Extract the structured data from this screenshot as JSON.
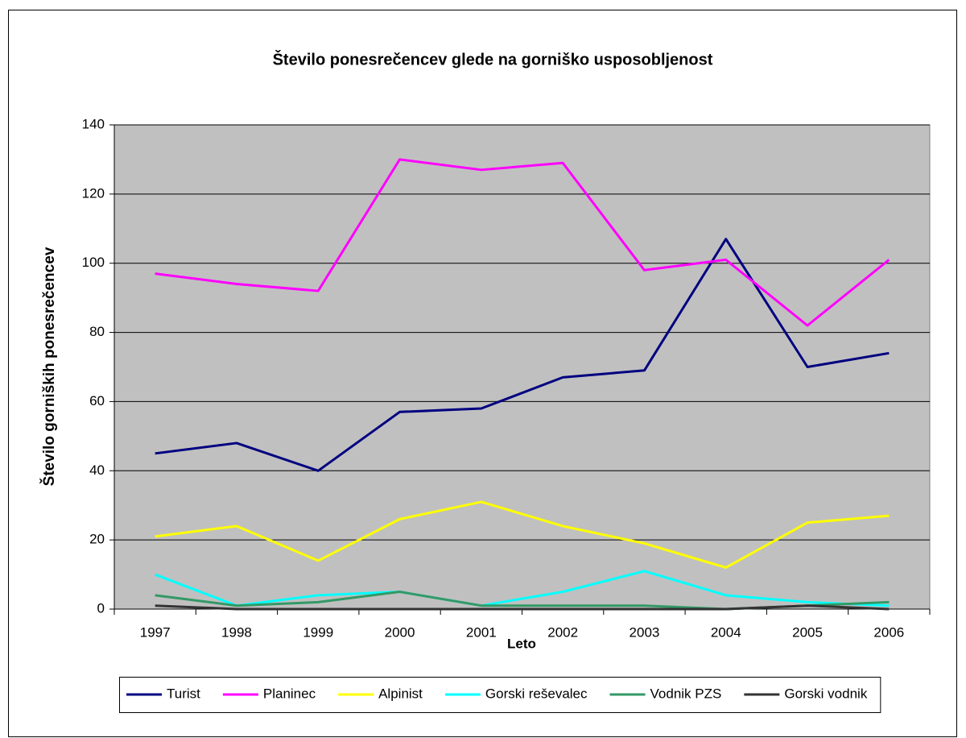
{
  "chart_data": {
    "type": "line",
    "title": "Število ponesrečencev glede na gorniško usposobljenost",
    "x_label": "Leto",
    "y_label": "Število gorniških ponesrečencev",
    "categories": [
      "1997",
      "1998",
      "1999",
      "2000",
      "2001",
      "2002",
      "2003",
      "2004",
      "2005",
      "2006"
    ],
    "series": [
      {
        "name": "Turist",
        "color": "#000080",
        "values": [
          45,
          48,
          40,
          57,
          58,
          67,
          69,
          107,
          70,
          74
        ]
      },
      {
        "name": "Planinec",
        "color": "#ff00ff",
        "values": [
          97,
          94,
          92,
          130,
          127,
          129,
          98,
          101,
          82,
          101
        ]
      },
      {
        "name": "Alpinist",
        "color": "#ffff00",
        "values": [
          21,
          24,
          14,
          26,
          31,
          24,
          19,
          12,
          25,
          27
        ]
      },
      {
        "name": "Gorski reševalec",
        "color": "#00ffff",
        "values": [
          10,
          1,
          4,
          5,
          1,
          5,
          11,
          4,
          2,
          1
        ]
      },
      {
        "name": "Vodnik PZS",
        "color": "#339966",
        "values": [
          4,
          1,
          2,
          5,
          1,
          1,
          1,
          0,
          1,
          2
        ]
      },
      {
        "name": "Gorski vodnik",
        "color": "#333333",
        "values": [
          1,
          0,
          0,
          0,
          0,
          0,
          0,
          0,
          1,
          0
        ]
      }
    ],
    "ylim": [
      0,
      140
    ],
    "yticks": [
      0,
      20,
      40,
      60,
      80,
      100,
      120,
      140
    ],
    "grid": true,
    "legend": "bottom",
    "plot_background": "#c0c0c0"
  }
}
